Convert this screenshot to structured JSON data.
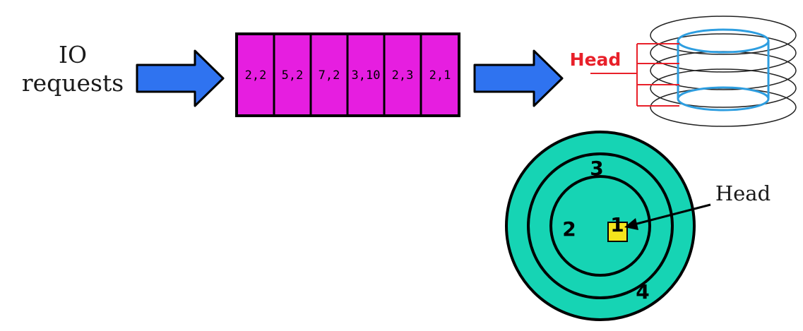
{
  "io_requests": {
    "line1": "IO",
    "line2": "requests"
  },
  "queue": {
    "fill_color": "#e61ee0",
    "cells": [
      "2,2",
      "5,2",
      "7,2",
      "3,10",
      "2,3",
      "2,1"
    ]
  },
  "arrows": {
    "color": "#2f73f0"
  },
  "disk_3d": {
    "head_label": "Head",
    "head_color": "#e8202a",
    "cylinder_color": "#2e9ee0"
  },
  "platter": {
    "fill_color": "#16d4b4",
    "head_label": "Head",
    "head_marker_color": "#f5e51c",
    "track_labels": {
      "t1": "1",
      "t2": "2",
      "t3": "3",
      "t4": "4"
    }
  }
}
